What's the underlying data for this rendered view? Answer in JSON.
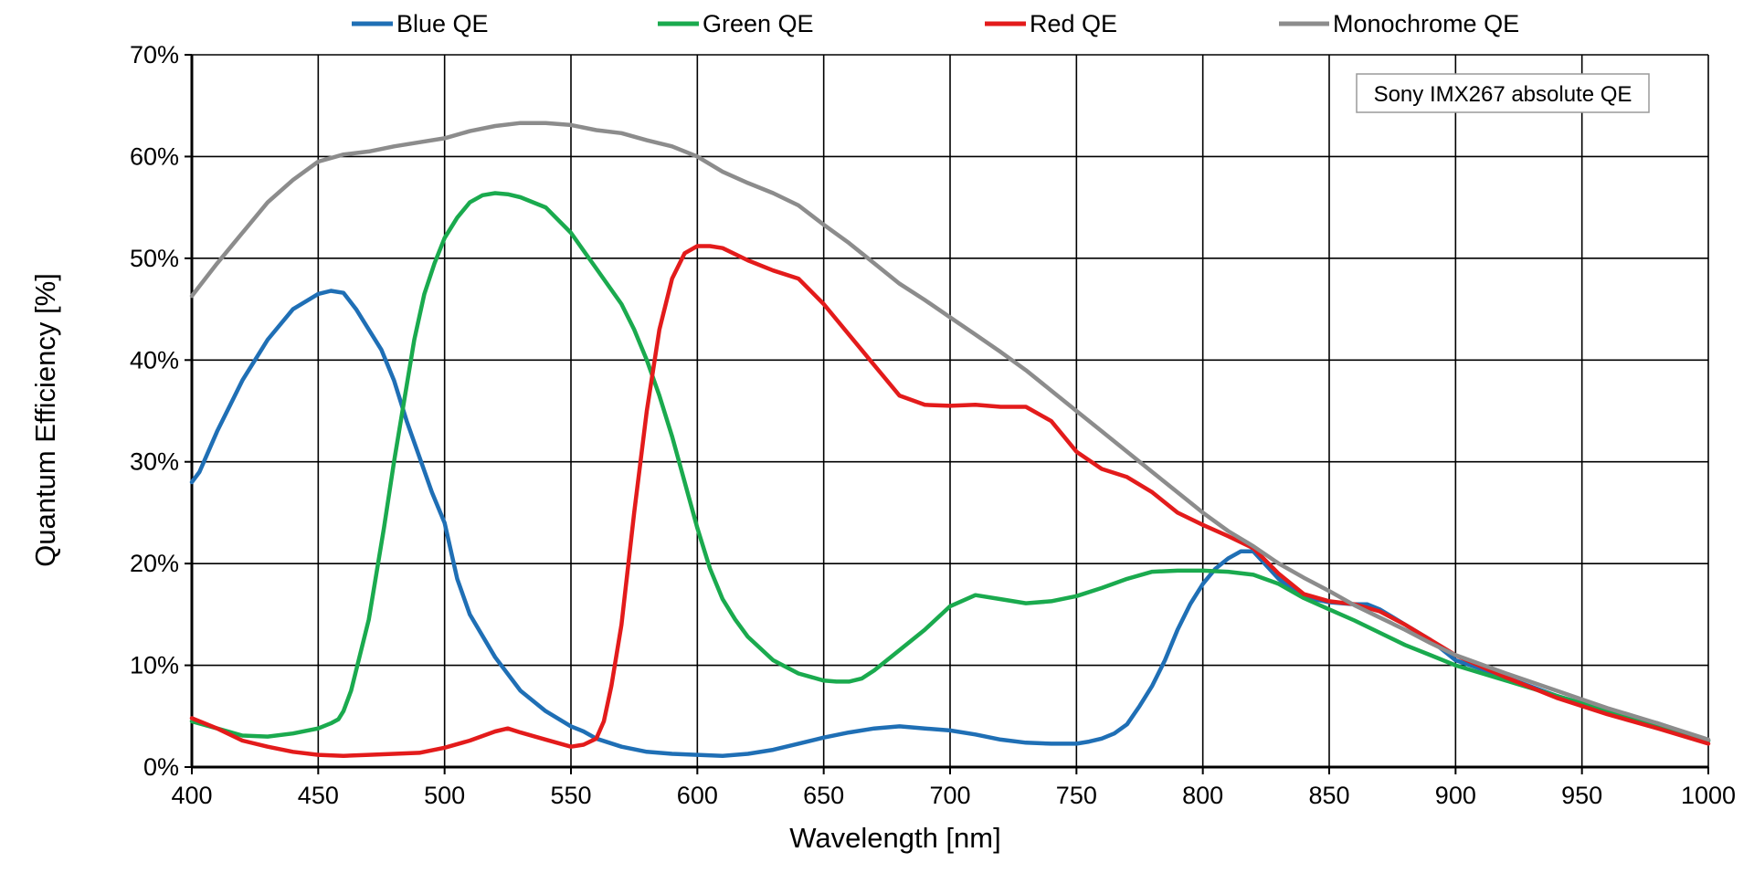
{
  "chart_data": {
    "type": "line",
    "title": "",
    "xlabel": "Wavelength [nm]",
    "ylabel": "Quantum Efficiency [%]",
    "xlim": [
      400,
      1000
    ],
    "ylim": [
      0,
      70
    ],
    "xticks": [
      400,
      450,
      500,
      550,
      600,
      650,
      700,
      750,
      800,
      850,
      900,
      950,
      1000
    ],
    "yticks": [
      0,
      10,
      20,
      30,
      40,
      50,
      60,
      70
    ],
    "yticks_suffix": "%",
    "grid": true,
    "legend_position": "top",
    "annotation": "Sony IMX267 absolute QE",
    "series": [
      {
        "name": "Blue QE",
        "color": "#1f6fb5",
        "x": [
          400,
          403,
          410,
          420,
          430,
          440,
          450,
          455,
          460,
          465,
          470,
          475,
          480,
          485,
          490,
          495,
          500,
          505,
          510,
          520,
          530,
          540,
          550,
          555,
          560,
          570,
          580,
          590,
          600,
          610,
          620,
          630,
          640,
          650,
          660,
          670,
          680,
          690,
          700,
          710,
          720,
          730,
          740,
          750,
          755,
          760,
          765,
          770,
          775,
          780,
          785,
          790,
          795,
          800,
          805,
          810,
          815,
          820,
          830,
          840,
          850,
          860,
          865,
          870,
          880,
          890,
          900,
          920,
          940,
          960,
          980,
          1000
        ],
        "y": [
          28,
          29,
          33,
          38,
          42,
          45,
          46.5,
          46.8,
          46.6,
          45,
          43,
          41,
          38,
          34,
          30.5,
          27,
          24,
          18.5,
          15,
          10.8,
          7.5,
          5.5,
          4,
          3.5,
          2.8,
          2,
          1.5,
          1.3,
          1.2,
          1.1,
          1.3,
          1.7,
          2.3,
          2.9,
          3.4,
          3.8,
          4,
          3.8,
          3.6,
          3.2,
          2.7,
          2.4,
          2.3,
          2.3,
          2.5,
          2.8,
          3.3,
          4.2,
          6,
          8,
          10.5,
          13.5,
          16,
          18,
          19.5,
          20.5,
          21.2,
          21.2,
          18.5,
          16.7,
          16.2,
          16,
          16,
          15.5,
          14,
          12.5,
          10.5,
          8.8,
          7,
          5.5,
          4.3,
          2.6
        ]
      },
      {
        "name": "Green QE",
        "color": "#1aaa4e",
        "x": [
          400,
          410,
          420,
          430,
          440,
          450,
          455,
          458,
          460,
          463,
          466,
          470,
          473,
          476,
          480,
          484,
          488,
          492,
          496,
          500,
          505,
          510,
          515,
          520,
          525,
          530,
          540,
          550,
          560,
          570,
          575,
          580,
          585,
          590,
          595,
          600,
          605,
          610,
          615,
          620,
          630,
          640,
          650,
          655,
          660,
          665,
          670,
          680,
          690,
          700,
          710,
          720,
          730,
          740,
          750,
          760,
          770,
          780,
          790,
          800,
          810,
          820,
          830,
          840,
          850,
          860,
          870,
          880,
          890,
          900,
          920,
          940,
          960,
          980,
          1000
        ],
        "y": [
          4.5,
          3.8,
          3.1,
          3.0,
          3.3,
          3.8,
          4.3,
          4.7,
          5.5,
          7.5,
          10.5,
          14.5,
          19,
          23.5,
          30,
          36,
          42,
          46.5,
          49.5,
          52,
          54,
          55.5,
          56.2,
          56.4,
          56.3,
          56,
          55,
          52.5,
          49,
          45.5,
          43,
          40,
          36.5,
          32.5,
          28,
          23.5,
          19.5,
          16.5,
          14.5,
          12.8,
          10.5,
          9.2,
          8.5,
          8.4,
          8.4,
          8.7,
          9.5,
          11.5,
          13.5,
          15.8,
          16.9,
          16.5,
          16.1,
          16.3,
          16.8,
          17.6,
          18.5,
          19.2,
          19.3,
          19.3,
          19.2,
          18.9,
          18,
          16.6,
          15.5,
          14.4,
          13.2,
          12,
          11,
          10,
          8.5,
          7,
          5.5,
          4,
          2.6
        ]
      },
      {
        "name": "Red QE",
        "color": "#e31b1b",
        "x": [
          400,
          410,
          420,
          430,
          440,
          450,
          460,
          470,
          480,
          490,
          500,
          510,
          520,
          525,
          530,
          540,
          550,
          555,
          560,
          563,
          566,
          570,
          575,
          580,
          585,
          590,
          595,
          600,
          605,
          610,
          620,
          630,
          640,
          650,
          660,
          670,
          680,
          690,
          700,
          710,
          720,
          730,
          740,
          750,
          760,
          770,
          780,
          790,
          800,
          810,
          820,
          830,
          840,
          850,
          860,
          870,
          880,
          890,
          900,
          920,
          940,
          960,
          980,
          1000
        ],
        "y": [
          4.8,
          3.8,
          2.6,
          2.0,
          1.5,
          1.2,
          1.1,
          1.2,
          1.3,
          1.4,
          1.9,
          2.6,
          3.5,
          3.8,
          3.4,
          2.7,
          2.0,
          2.2,
          2.8,
          4.5,
          8,
          14,
          25,
          35,
          43,
          48,
          50.5,
          51.2,
          51.2,
          51,
          49.8,
          48.8,
          48,
          45.5,
          42.5,
          39.5,
          36.5,
          35.6,
          35.5,
          35.6,
          35.4,
          35.4,
          34,
          31,
          29.3,
          28.5,
          27,
          25,
          23.8,
          22.7,
          21.5,
          19,
          17,
          16.3,
          16,
          15.3,
          14,
          12.5,
          11,
          8.8,
          6.8,
          5.2,
          3.8,
          2.3
        ]
      },
      {
        "name": "Monochrome QE",
        "color": "#8c8c8c",
        "x": [
          400,
          410,
          420,
          430,
          440,
          450,
          460,
          470,
          480,
          490,
          500,
          510,
          520,
          530,
          540,
          550,
          560,
          570,
          580,
          590,
          600,
          610,
          620,
          630,
          640,
          650,
          660,
          670,
          680,
          690,
          700,
          710,
          720,
          730,
          740,
          750,
          760,
          770,
          780,
          790,
          800,
          810,
          820,
          830,
          840,
          850,
          860,
          870,
          880,
          890,
          900,
          920,
          940,
          960,
          980,
          1000
        ],
        "y": [
          46.3,
          49.5,
          52.5,
          55.5,
          57.7,
          59.5,
          60.2,
          60.5,
          61,
          61.4,
          61.8,
          62.5,
          63,
          63.3,
          63.3,
          63.1,
          62.6,
          62.3,
          61.6,
          61,
          60,
          58.5,
          57.4,
          56.4,
          55.2,
          53.3,
          51.5,
          49.5,
          47.5,
          45.9,
          44.2,
          42.5,
          40.8,
          39,
          37,
          35,
          33,
          31,
          29,
          27,
          25,
          23.2,
          21.7,
          20,
          18.6,
          17.3,
          15.9,
          14.7,
          13.5,
          12.2,
          11,
          9.2,
          7.5,
          5.8,
          4.3,
          2.7
        ]
      }
    ]
  }
}
